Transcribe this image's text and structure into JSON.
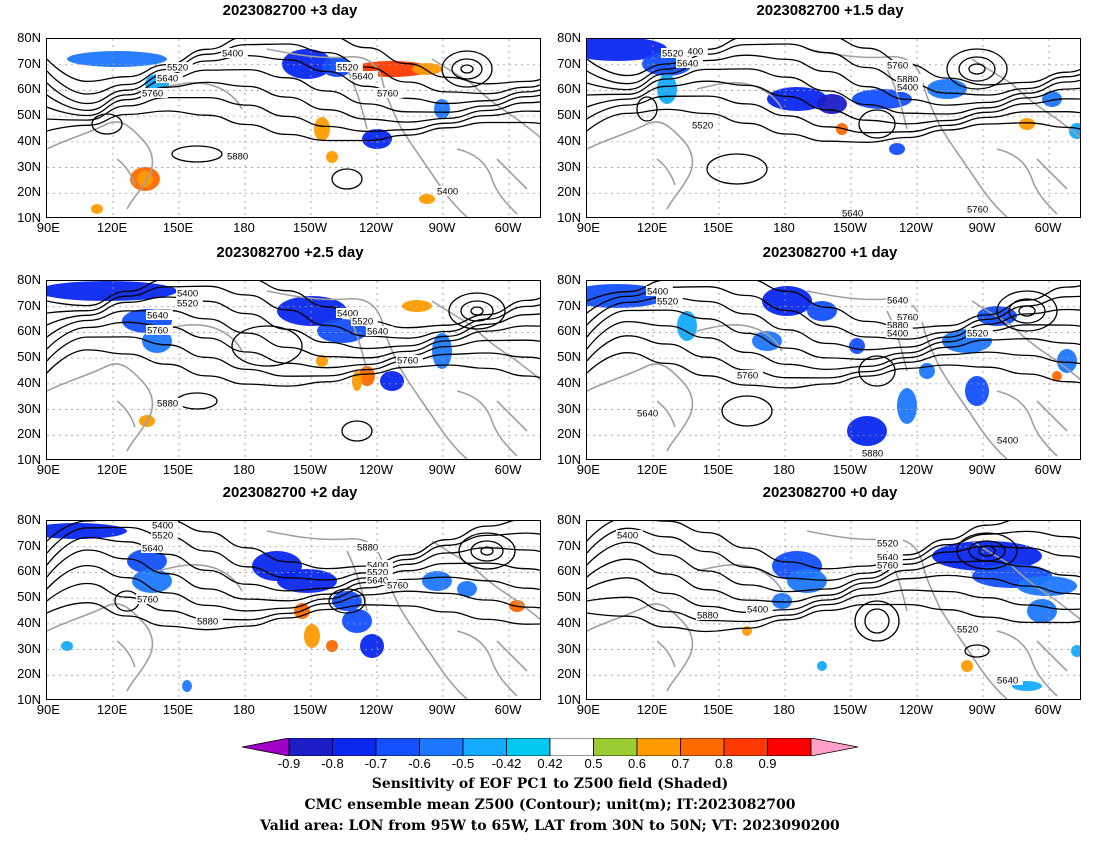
{
  "panels": [
    {
      "title": "2023082700 +3 day"
    },
    {
      "title": "2023082700 +1.5 day"
    },
    {
      "title": "2023082700 +2.5 day"
    },
    {
      "title": "2023082700 +1 day"
    },
    {
      "title": "2023082700 +2 day"
    },
    {
      "title": "2023082700 +0 day"
    }
  ],
  "lat_labels": [
    "80N",
    "70N",
    "60N",
    "50N",
    "40N",
    "30N",
    "20N",
    "10N"
  ],
  "lon_labels": [
    "90E",
    "120E",
    "150E",
    "180",
    "150W",
    "120W",
    "90W",
    "60W"
  ],
  "contour_labels": [
    "5400",
    "5520",
    "5640",
    "5760",
    "5880"
  ],
  "colorbar": {
    "ticks": [
      "-0.9",
      "-0.8",
      "-0.7",
      "-0.6",
      "-0.5",
      "-0.42",
      "0.42",
      "0.5",
      "0.6",
      "0.7",
      "0.8",
      "0.9"
    ],
    "colors": [
      "#a000c8",
      "#1e1ec8",
      "#0a28f0",
      "#1450ff",
      "#1e78ff",
      "#14aaff",
      "#00c8f0",
      "#ffffff",
      "#9bcd32",
      "#ff9b00",
      "#ff6a00",
      "#ff3a00",
      "#ff0000",
      "#ffa0c8"
    ]
  },
  "footer": {
    "line1": "Sensitivity of EOF PC1 to Z500 field (Shaded)",
    "line2": "CMC ensemble mean Z500 (Contour); unit(m); IT:2023082700",
    "line3": "Valid area: LON from 95W to 65W, LAT from 30N to 50N; VT: 2023090200"
  }
}
